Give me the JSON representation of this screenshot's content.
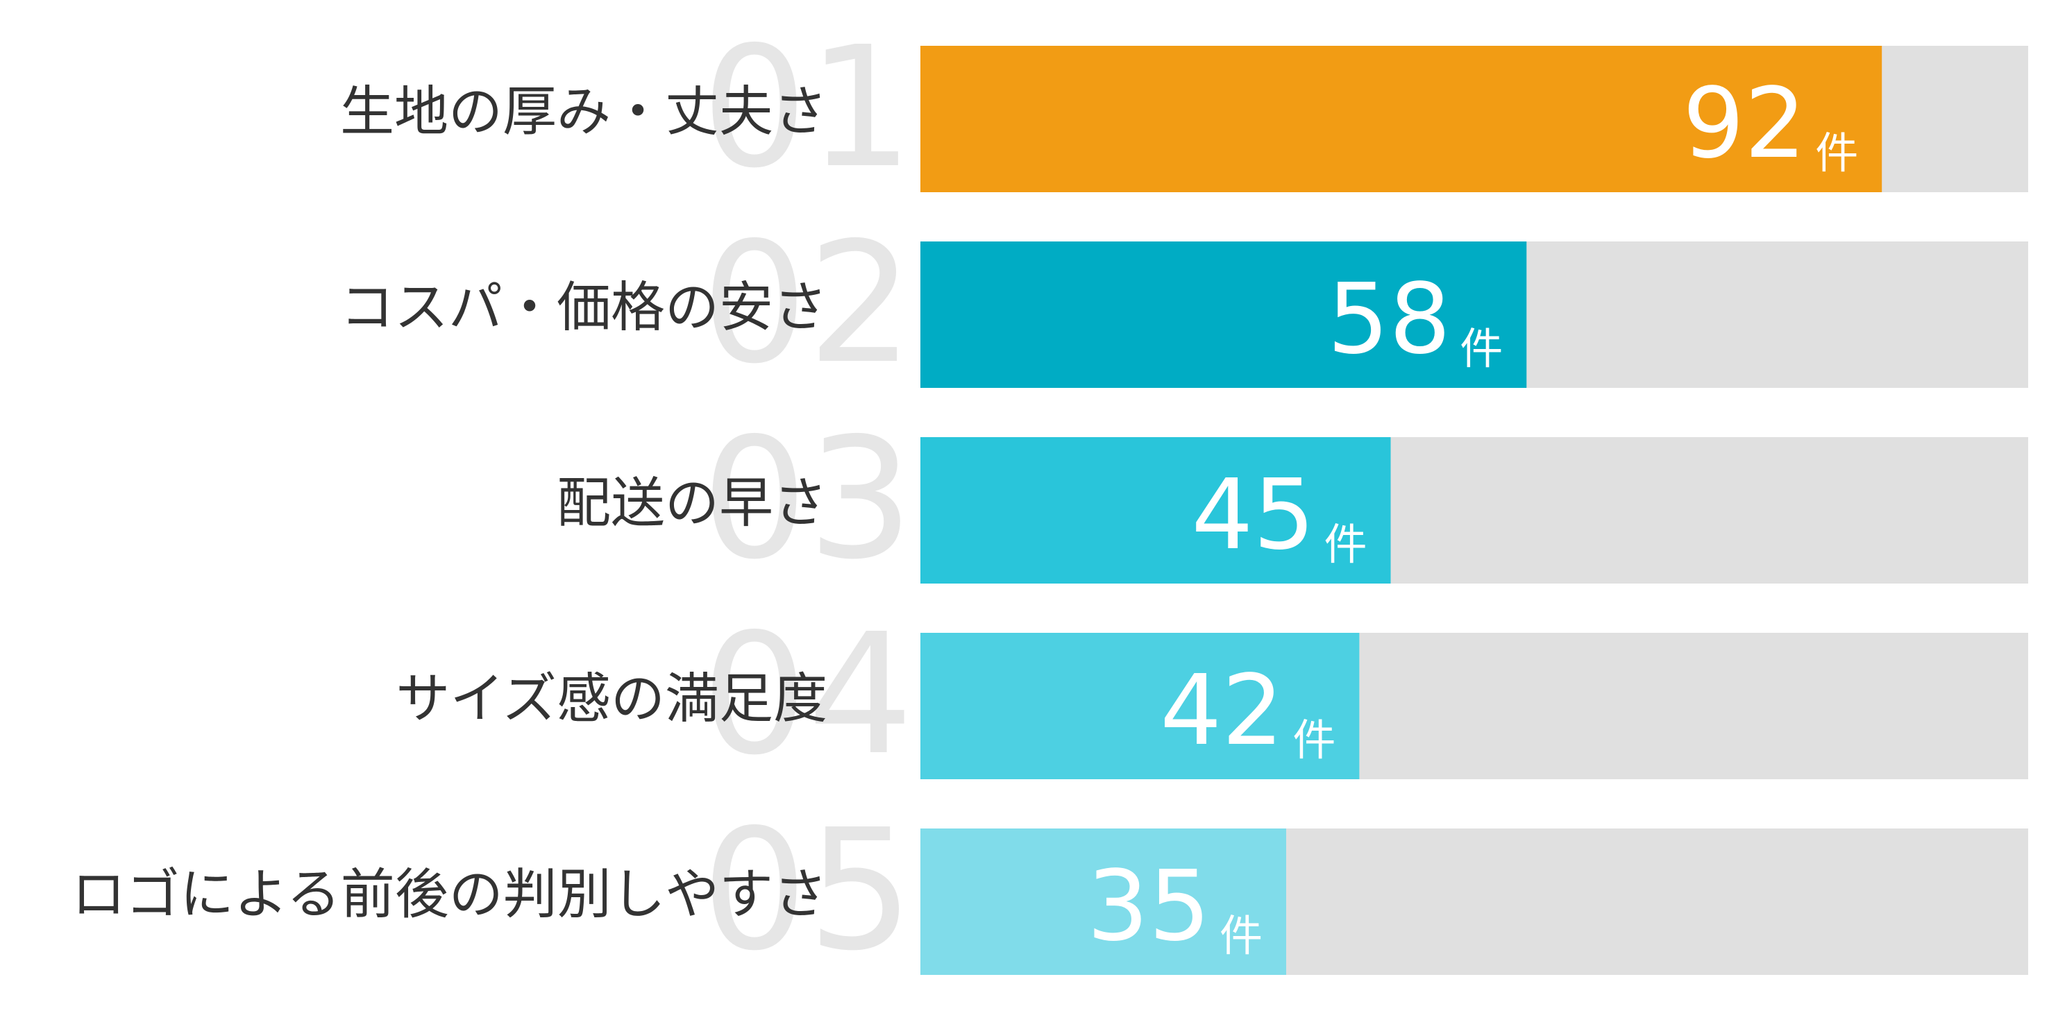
{
  "chart_data": {
    "type": "bar",
    "orientation": "horizontal",
    "ranks": [
      "01",
      "02",
      "03",
      "04",
      "05"
    ],
    "categories": [
      "生地の厚み・丈夫さ",
      "コスパ・価格の安さ",
      "配送の早さ",
      "サイズ感の満足度",
      "ロゴによる前後の判別しやすさ"
    ],
    "values": [
      92,
      58,
      45,
      42,
      35
    ],
    "unit": "件",
    "colors": [
      "#f29c14",
      "#00acc4",
      "#29c5da",
      "#4dd0e2",
      "#80dcea"
    ],
    "track_color": "#e0e0e0",
    "xlim": [
      0,
      106
    ]
  }
}
